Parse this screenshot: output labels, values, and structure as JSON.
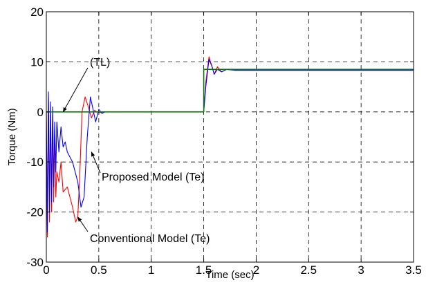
{
  "chart_data": {
    "type": "line",
    "xlabel": "Time (sec)",
    "ylabel": "Torque (Nm)",
    "xlim": [
      0,
      3.5
    ],
    "ylim": [
      -30,
      20
    ],
    "xticks": [
      0,
      0.5,
      1,
      1.5,
      2,
      2.5,
      3,
      3.5
    ],
    "xtick_labels": [
      "0",
      "0.5",
      "1",
      "1.5",
      "2",
      "2.5",
      "3",
      "3.5"
    ],
    "yticks": [
      -30,
      -20,
      -10,
      0,
      10,
      20
    ],
    "ytick_labels": [
      "-30",
      "-20",
      "-10",
      "0",
      "10",
      "20"
    ],
    "grid": true,
    "grid_style": "dashed",
    "series": [
      {
        "key": "load",
        "color": "#008000",
        "x": [
          0,
          1.5,
          1.5,
          3.5
        ],
        "y": [
          0,
          0,
          8.5,
          8.5
        ]
      },
      {
        "key": "conventional",
        "color": "#ff0000",
        "x": [
          0,
          0.01,
          0.02,
          0.03,
          0.04,
          0.05,
          0.06,
          0.07,
          0.08,
          0.09,
          0.1,
          0.12,
          0.14,
          0.16,
          0.2,
          0.25,
          0.28,
          0.3,
          0.32,
          0.34,
          0.37,
          0.4,
          0.43,
          0.46,
          0.5,
          0.55,
          0.6,
          1.5,
          1.52,
          1.55,
          1.58,
          1.6,
          1.63,
          1.67,
          1.72,
          1.8,
          3.5
        ],
        "y": [
          0,
          -25,
          3,
          -22,
          1,
          -20,
          -1,
          -18,
          -3,
          -17,
          -12,
          -14,
          -10,
          -16,
          -15,
          -19,
          -22,
          -21,
          -12,
          0,
          3,
          1,
          -1.2,
          0.3,
          -0.2,
          0,
          0,
          0,
          6,
          11,
          9,
          7.5,
          9,
          8,
          8.5,
          8.3,
          8.3
        ]
      },
      {
        "key": "proposed",
        "color": "#0000ff",
        "x": [
          0,
          0.01,
          0.02,
          0.03,
          0.04,
          0.05,
          0.06,
          0.07,
          0.08,
          0.09,
          0.1,
          0.12,
          0.14,
          0.16,
          0.18,
          0.2,
          0.25,
          0.3,
          0.33,
          0.36,
          0.39,
          0.42,
          0.44,
          0.47,
          0.5,
          0.53,
          0.56,
          0.6,
          0.7,
          1.5,
          1.52,
          1.55,
          1.58,
          1.6,
          1.63,
          1.67,
          1.72,
          1.8,
          3.5
        ],
        "y": [
          0,
          -24,
          4,
          -20,
          2,
          -18,
          1,
          -15,
          -2,
          -12,
          -2,
          -8,
          -3,
          -7,
          -6,
          -8,
          -10,
          -14,
          -19,
          -17,
          -5,
          3,
          1,
          -2,
          0.5,
          -0.3,
          0,
          0,
          0,
          0,
          5,
          10.5,
          9,
          7.5,
          8.5,
          8,
          8.5,
          8.3,
          8.3
        ]
      }
    ],
    "annotations": [
      {
        "text": "(TL)",
        "target": [
          0.16,
          0
        ]
      },
      {
        "text": "Proposed Model (Te)",
        "target": [
          0.43,
          -8
        ]
      },
      {
        "text": "Conventional Model (Te)",
        "target": [
          0.3,
          -21
        ]
      }
    ]
  }
}
